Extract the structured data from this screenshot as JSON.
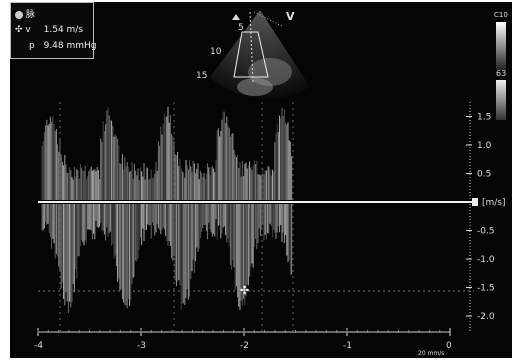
{
  "measurement": {
    "mode_label": "脉",
    "velocity_label": "v",
    "velocity_value": "1.54 m/s",
    "pressure_label": "p",
    "pressure_value": "9.48 mmHg"
  },
  "sector": {
    "view_label": "V",
    "depth_labels": [
      "5",
      "10",
      "15"
    ]
  },
  "gray_bar": {
    "top_label": "C10",
    "top_value": "63",
    "bottom_value": "1.5\n63"
  },
  "velocity_scale": {
    "unit": "[m/s]",
    "ticks": [
      "1.5",
      "1.0",
      "0.5",
      "-0.5",
      "-1.0",
      "-1.5",
      "-2.0"
    ]
  },
  "time_axis": {
    "ticks": [
      "-4",
      "-3",
      "-2",
      "-1",
      "0"
    ],
    "sweep_label": "20 mm/s"
  },
  "colors": {
    "background": "#050505",
    "signal": "#e6e6e6",
    "text": "#e8e8e8"
  }
}
